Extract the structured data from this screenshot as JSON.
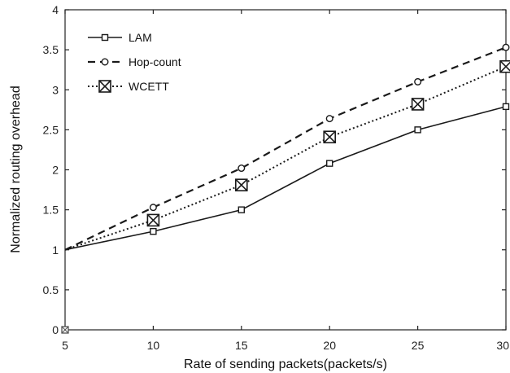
{
  "chart_data": {
    "type": "line",
    "title": "",
    "xlabel": "Rate of sending packets(packets/s)",
    "ylabel": "Normalized routing overhead",
    "xlim": [
      5,
      30
    ],
    "ylim": [
      0,
      4
    ],
    "xticks": [
      5,
      10,
      15,
      20,
      25,
      30
    ],
    "yticks": [
      0,
      0.5,
      1,
      1.5,
      2,
      2.5,
      3,
      3.5,
      4
    ],
    "ytick_labels": [
      "0",
      "0.5",
      "1",
      "1.5",
      "2",
      "2.5",
      "3",
      "3.5",
      "4"
    ],
    "grid": false,
    "legend_position": "top-left",
    "x": [
      5,
      10,
      15,
      20,
      25,
      30
    ],
    "series": [
      {
        "name": "LAM",
        "values": [
          1.0,
          1.23,
          1.5,
          2.08,
          2.5,
          2.79
        ],
        "line_style": "solid",
        "marker": "square",
        "color": "#1a1a1a"
      },
      {
        "name": "Hop-count",
        "values": [
          1.0,
          1.53,
          2.02,
          2.64,
          3.1,
          3.53
        ],
        "line_style": "dashed",
        "marker": "circle",
        "color": "#1a1a1a"
      },
      {
        "name": "WCETT",
        "values": [
          1.0,
          1.37,
          1.81,
          2.41,
          2.82,
          3.29
        ],
        "line_style": "dotted",
        "marker": "boxed-x",
        "color": "#1a1a1a"
      }
    ]
  }
}
